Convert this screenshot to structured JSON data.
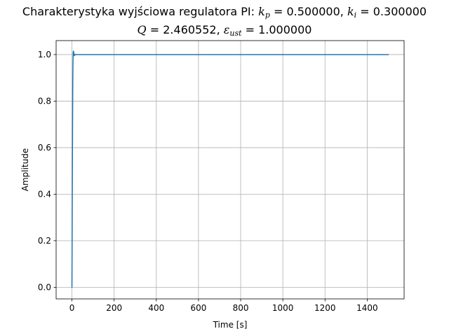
{
  "chart_data": {
    "type": "line",
    "title": {
      "line1": {
        "prefix": "Charakterystyka wyjściowa regulatora PI: ",
        "kp_symbol": "k",
        "kp_sub": "p",
        "kp_value": " = 0.500000, ",
        "ki_symbol": "k",
        "ki_sub": "i",
        "ki_value": " = 0.300000"
      },
      "line2": {
        "q_symbol": "Q",
        "q_value": " = 2.460552, ",
        "eps_symbol": "ε",
        "eps_sub": "ust",
        "eps_value": " = 1.000000"
      }
    },
    "xlabel": "Time [s]",
    "ylabel": "Amplitude",
    "xlim": [
      -75,
      1575
    ],
    "ylim": [
      -0.05,
      1.06
    ],
    "xticks": [
      0,
      200,
      400,
      600,
      800,
      1000,
      1200,
      1400
    ],
    "yticks": [
      0.0,
      0.2,
      0.4,
      0.6,
      0.8,
      1.0
    ],
    "ytick_labels": [
      "0.0",
      "0.2",
      "0.4",
      "0.6",
      "0.8",
      "1.0"
    ],
    "grid": true,
    "line_color": "#1f77b4",
    "series": [
      {
        "x": [
          0,
          1,
          2,
          3,
          4,
          5,
          6,
          7,
          8,
          9,
          10,
          11,
          12,
          13,
          14,
          16,
          18,
          20,
          25,
          30,
          40,
          60,
          100,
          200,
          400,
          600,
          800,
          1000,
          1200,
          1400,
          1500
        ],
        "values": [
          0.0,
          0.25,
          0.5,
          0.72,
          0.88,
          0.97,
          1.01,
          1.015,
          1.012,
          1.006,
          1.0,
          0.996,
          0.995,
          0.997,
          0.999,
          1.001,
          1.0005,
          1.0,
          1.0,
          1.0,
          1.0,
          1.0,
          1.0,
          1.0,
          1.0,
          1.0,
          1.0,
          1.0,
          1.0,
          1.0,
          1.0
        ]
      }
    ]
  }
}
